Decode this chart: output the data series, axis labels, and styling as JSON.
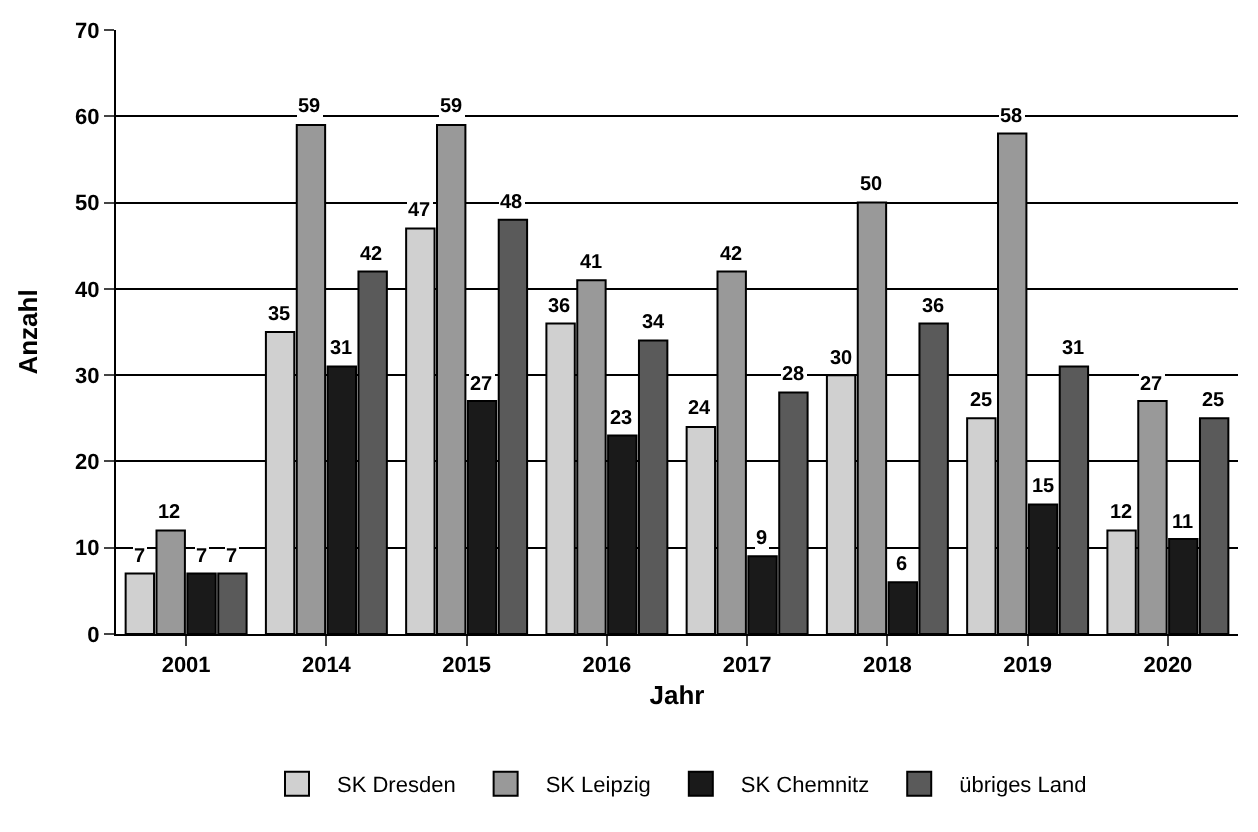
{
  "chart_data": {
    "type": "bar",
    "xlabel": "Jahr",
    "ylabel": "Anzahl",
    "categories": [
      "2001",
      "2014",
      "2015",
      "2016",
      "2017",
      "2018",
      "2019",
      "2020"
    ],
    "series": [
      {
        "name": "SK Dresden",
        "color": "#d0d0d0",
        "values": [
          7,
          35,
          47,
          36,
          24,
          30,
          25,
          12
        ]
      },
      {
        "name": "SK Leipzig",
        "color": "#999999",
        "values": [
          12,
          59,
          59,
          41,
          42,
          50,
          58,
          27
        ]
      },
      {
        "name": "SK Chemnitz",
        "color": "#1a1a1a",
        "values": [
          7,
          31,
          27,
          23,
          9,
          6,
          15,
          11
        ]
      },
      {
        "name": "übriges Land",
        "color": "#5a5a5a",
        "values": [
          7,
          42,
          48,
          34,
          28,
          36,
          31,
          25
        ]
      }
    ],
    "ylim": [
      0,
      70
    ],
    "yticks": [
      0,
      10,
      20,
      30,
      40,
      50,
      60,
      70
    ],
    "grid": "y",
    "legend": "bottom",
    "data_labels": true
  }
}
